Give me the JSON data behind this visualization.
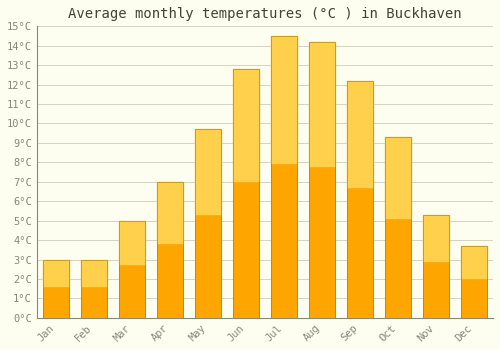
{
  "title": "Average monthly temperatures (°C ) in Buckhaven",
  "months": [
    "Jan",
    "Feb",
    "Mar",
    "Apr",
    "May",
    "Jun",
    "Jul",
    "Aug",
    "Sep",
    "Oct",
    "Nov",
    "Dec"
  ],
  "values": [
    3.0,
    3.0,
    5.0,
    7.0,
    9.7,
    12.8,
    14.5,
    14.2,
    12.2,
    9.3,
    5.3,
    3.7
  ],
  "bar_color_main": "#FFA500",
  "bar_color_light": "#FFD04C",
  "bar_edge_color": "#B8860B",
  "ylim": [
    0,
    15
  ],
  "yticks": [
    0,
    1,
    2,
    3,
    4,
    5,
    6,
    7,
    8,
    9,
    10,
    11,
    12,
    13,
    14,
    15
  ],
  "background_color": "#FDFDF0",
  "grid_color": "#CCCCBB",
  "title_fontsize": 10,
  "tick_fontsize": 7.5,
  "font_family": "monospace",
  "tick_color": "#888877",
  "title_color": "#444433"
}
